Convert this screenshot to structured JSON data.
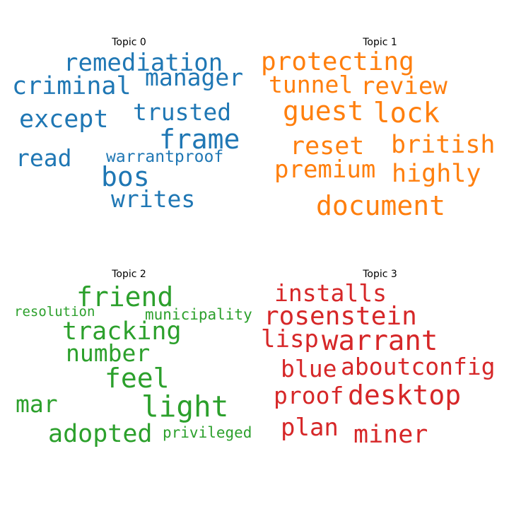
{
  "chart_data": [
    {
      "type": "wordcloud",
      "title": "Topic 0",
      "color": "#1f77b4",
      "words": [
        {
          "text": "remediation",
          "weight": 0.72
        },
        {
          "text": "manager",
          "weight": 0.68
        },
        {
          "text": "criminal",
          "weight": 0.72
        },
        {
          "text": "except",
          "weight": 0.7
        },
        {
          "text": "trusted",
          "weight": 0.68
        },
        {
          "text": "frame",
          "weight": 0.84
        },
        {
          "text": "warrantproof",
          "weight": 0.5
        },
        {
          "text": "read",
          "weight": 0.7
        },
        {
          "text": "bos",
          "weight": 0.84
        },
        {
          "text": "writes",
          "weight": 0.72
        }
      ]
    },
    {
      "type": "wordcloud",
      "title": "Topic 1",
      "color": "#ff7f0e",
      "words": [
        {
          "text": "protecting",
          "weight": 0.74
        },
        {
          "text": "tunnel",
          "weight": 0.7
        },
        {
          "text": "review",
          "weight": 0.76
        },
        {
          "text": "guest",
          "weight": 0.8
        },
        {
          "text": "lock",
          "weight": 0.86
        },
        {
          "text": "reset",
          "weight": 0.76
        },
        {
          "text": "british",
          "weight": 0.76
        },
        {
          "text": "premium",
          "weight": 0.72
        },
        {
          "text": "highly",
          "weight": 0.76
        },
        {
          "text": "document",
          "weight": 0.8
        }
      ]
    },
    {
      "type": "wordcloud",
      "title": "Topic 2",
      "color": "#2ca02c",
      "words": [
        {
          "text": "friend",
          "weight": 0.82
        },
        {
          "text": "resolution",
          "weight": 0.5
        },
        {
          "text": "municipality",
          "weight": 0.5
        },
        {
          "text": "tracking",
          "weight": 0.74
        },
        {
          "text": "number",
          "weight": 0.72
        },
        {
          "text": "feel",
          "weight": 0.8
        },
        {
          "text": "mar",
          "weight": 0.74
        },
        {
          "text": "light",
          "weight": 0.86
        },
        {
          "text": "adopted",
          "weight": 0.78
        },
        {
          "text": "privileged",
          "weight": 0.5
        }
      ]
    },
    {
      "type": "wordcloud",
      "title": "Topic 3",
      "color": "#d62728",
      "words": [
        {
          "text": "installs",
          "weight": 0.74
        },
        {
          "text": "rosenstein",
          "weight": 0.76
        },
        {
          "text": "lisp",
          "weight": 0.74
        },
        {
          "text": "warrant",
          "weight": 0.84
        },
        {
          "text": "blue",
          "weight": 0.74
        },
        {
          "text": "aboutconfig",
          "weight": 0.76
        },
        {
          "text": "proof",
          "weight": 0.74
        },
        {
          "text": "desktop",
          "weight": 0.86
        },
        {
          "text": "plan",
          "weight": 0.74
        },
        {
          "text": "miner",
          "weight": 0.8
        }
      ]
    }
  ]
}
